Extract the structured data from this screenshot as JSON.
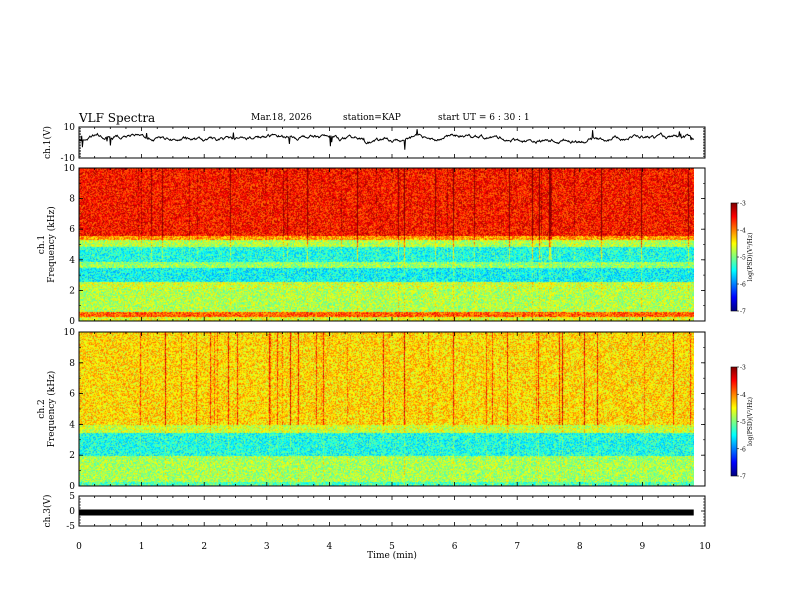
{
  "header": {
    "title": "VLF Spectra",
    "date": "Mar.18, 2026",
    "station": "station=KAP",
    "start": "start UT =  6 : 30 : 1"
  },
  "chart_data": [
    {
      "type": "line",
      "panel": "ch1-waveform",
      "ylabel": "ch.1(V)",
      "ylim": [
        -10,
        10
      ],
      "yticks": [
        "10",
        "-10"
      ],
      "xlim": [
        0,
        10
      ],
      "series": [
        {
          "name": "ch.1",
          "mean": 2.5,
          "spread": 4
        }
      ]
    },
    {
      "type": "heatmap",
      "panel": "ch1-spectrogram",
      "ylabel": "ch.1\nFrequency (kHz)",
      "ylim": [
        0,
        10
      ],
      "yticks": [
        "0",
        "2",
        "4",
        "6",
        "8",
        "10"
      ],
      "xlim": [
        0,
        10
      ],
      "colorbar": {
        "label": "log(PSD)(V²/Hz)",
        "range": [
          -7,
          -3
        ],
        "ticks": [
          "-3",
          "-4",
          "-5",
          "-6",
          "-7"
        ]
      }
    },
    {
      "type": "heatmap",
      "panel": "ch2-spectrogram",
      "ylabel": "ch.2\nFrequency (kHz)",
      "ylim": [
        0,
        10
      ],
      "yticks": [
        "0",
        "2",
        "4",
        "6",
        "8",
        "10"
      ],
      "xlim": [
        0,
        10
      ],
      "colorbar": {
        "label": "log(PSD)(V²/Hz)",
        "range": [
          -7,
          -3
        ],
        "ticks": [
          "-3",
          "-4",
          "-5",
          "-6",
          "-7"
        ]
      }
    },
    {
      "type": "line",
      "panel": "ch3-waveform",
      "ylabel": "ch.3(V)",
      "ylim": [
        -5,
        5
      ],
      "yticks": [
        "5",
        "0",
        "-5"
      ],
      "xlim": [
        0,
        10
      ],
      "series": [
        {
          "name": "ch.3",
          "mean": -0.5,
          "spread": 0.4
        }
      ]
    }
  ],
  "xaxis": {
    "label": "Time (min)",
    "ticks": [
      "0",
      "1",
      "2",
      "3",
      "4",
      "5",
      "6",
      "7",
      "8",
      "9",
      "10"
    ],
    "data_end": 9.82
  },
  "colors": {
    "scale": [
      "#00007f",
      "#0000ff",
      "#007fff",
      "#00ffff",
      "#7fff7f",
      "#ffff00",
      "#ff7f00",
      "#ff0000",
      "#7f0000"
    ]
  }
}
